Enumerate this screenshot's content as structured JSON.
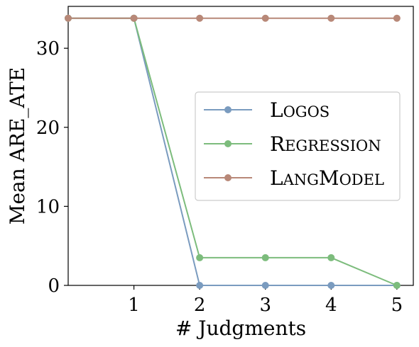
{
  "chart_data": {
    "type": "line",
    "xlabel": "# Judgments",
    "ylabel": "Mean ARE_ATE",
    "x": [
      0,
      1,
      2,
      3,
      4,
      5
    ],
    "x_ticks": [
      1,
      2,
      3,
      4,
      5
    ],
    "y_ticks": [
      0,
      10,
      20,
      30
    ],
    "xlim": [
      0,
      5.25
    ],
    "ylim": [
      0,
      35.3
    ],
    "legend_position": "center-right",
    "grid": false,
    "series": [
      {
        "name": "LOGos",
        "name_first": "L",
        "name_rest": "OGOS",
        "color": "#7a9bbf",
        "values": [
          33.8,
          33.8,
          0.0,
          0.0,
          0.0,
          0.0
        ]
      },
      {
        "name": "Regression",
        "name_first": "R",
        "name_rest": "EGRESSION",
        "color": "#7cbc7c",
        "values": [
          33.8,
          33.8,
          3.5,
          3.5,
          3.5,
          0.0
        ]
      },
      {
        "name": "LangModel",
        "name_first": "L",
        "name_rest": "ANG",
        "name_first2": "M",
        "name_rest2": "ODEL",
        "color": "#b88878",
        "values": [
          33.8,
          33.8,
          33.8,
          33.8,
          33.8,
          33.8
        ]
      }
    ]
  }
}
